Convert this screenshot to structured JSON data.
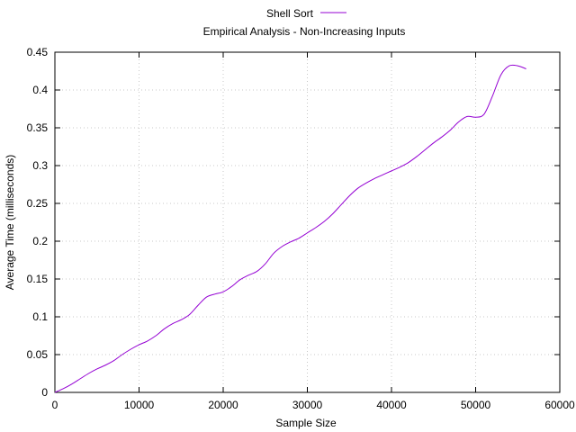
{
  "chart_data": {
    "type": "line",
    "title": "Empirical Analysis - Non-Increasing Inputs",
    "xlabel": "Sample Size",
    "ylabel": "Average Time (milliseconds)",
    "xlim": [
      0,
      60000
    ],
    "ylim": [
      0,
      0.45
    ],
    "xticks": [
      0,
      10000,
      20000,
      30000,
      40000,
      50000,
      60000
    ],
    "yticks": [
      0,
      0.05,
      0.1,
      0.15,
      0.2,
      0.25,
      0.3,
      0.35,
      0.4,
      0.45
    ],
    "xtick_labels": [
      "0",
      "10000",
      "20000",
      "30000",
      "40000",
      "50000",
      "60000"
    ],
    "ytick_labels": [
      "0",
      "0.05",
      "0.1",
      "0.15",
      "0.2",
      "0.25",
      "0.3",
      "0.35",
      "0.4",
      "0.45"
    ],
    "grid": true,
    "legend_position": "top-center",
    "series": [
      {
        "name": "Shell Sort",
        "color": "#9400d3",
        "x": [
          0,
          1000,
          2000,
          3000,
          4000,
          5000,
          6000,
          7000,
          8000,
          9000,
          10000,
          11000,
          12000,
          13000,
          14000,
          15000,
          16000,
          17000,
          18000,
          19000,
          20000,
          21000,
          22000,
          23000,
          24000,
          25000,
          26000,
          27000,
          28000,
          29000,
          30000,
          31000,
          32000,
          33000,
          34000,
          35000,
          36000,
          37000,
          38000,
          39000,
          40000,
          41000,
          42000,
          43000,
          44000,
          45000,
          46000,
          47000,
          48000,
          49000,
          50000,
          51000,
          52000,
          53000,
          54000,
          55000,
          56000
        ],
        "y": [
          0.0,
          0.005,
          0.011,
          0.018,
          0.025,
          0.031,
          0.036,
          0.042,
          0.05,
          0.057,
          0.063,
          0.068,
          0.075,
          0.084,
          0.091,
          0.096,
          0.103,
          0.115,
          0.126,
          0.13,
          0.133,
          0.14,
          0.149,
          0.155,
          0.16,
          0.17,
          0.184,
          0.193,
          0.199,
          0.204,
          0.211,
          0.218,
          0.226,
          0.236,
          0.248,
          0.26,
          0.27,
          0.277,
          0.283,
          0.288,
          0.293,
          0.298,
          0.304,
          0.312,
          0.321,
          0.33,
          0.338,
          0.347,
          0.358,
          0.365,
          0.364,
          0.368,
          0.392,
          0.42,
          0.432,
          0.432,
          0.428
        ]
      }
    ]
  }
}
